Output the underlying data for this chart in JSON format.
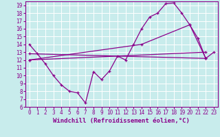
{
  "xlabel": "Windchill (Refroidissement éolien,°C)",
  "xlim": [
    -0.5,
    23.5
  ],
  "ylim": [
    6,
    19.5
  ],
  "xticks": [
    0,
    1,
    2,
    3,
    4,
    5,
    6,
    7,
    8,
    9,
    10,
    11,
    12,
    13,
    14,
    15,
    16,
    17,
    18,
    19,
    20,
    21,
    22,
    23
  ],
  "yticks": [
    6,
    7,
    8,
    9,
    10,
    11,
    12,
    13,
    14,
    15,
    16,
    17,
    18,
    19
  ],
  "bg_color": "#c8ecec",
  "line_color": "#8b008b",
  "grid_color": "#ffffff",
  "line1_x": [
    0,
    1,
    2,
    3,
    4,
    5,
    6,
    7,
    8,
    9,
    10,
    11,
    12,
    13,
    14,
    15,
    16,
    17,
    18,
    19,
    20,
    21,
    22,
    23
  ],
  "line1_y": [
    14.0,
    12.8,
    11.5,
    10.0,
    8.8,
    8.0,
    7.8,
    6.5,
    10.5,
    9.5,
    10.6,
    12.5,
    12.0,
    14.0,
    16.0,
    17.5,
    18.0,
    19.2,
    19.3,
    18.0,
    16.5,
    14.8,
    12.2,
    13.0
  ],
  "line2_x": [
    0,
    22
  ],
  "line2_y": [
    12.8,
    12.2
  ],
  "line3_x": [
    0,
    22
  ],
  "line3_y": [
    12.0,
    13.0
  ],
  "line4_x": [
    0,
    14,
    20,
    22
  ],
  "line4_y": [
    12.0,
    14.0,
    16.5,
    12.2
  ],
  "tick_fontsize": 5.5,
  "xlabel_fontsize": 6.5
}
